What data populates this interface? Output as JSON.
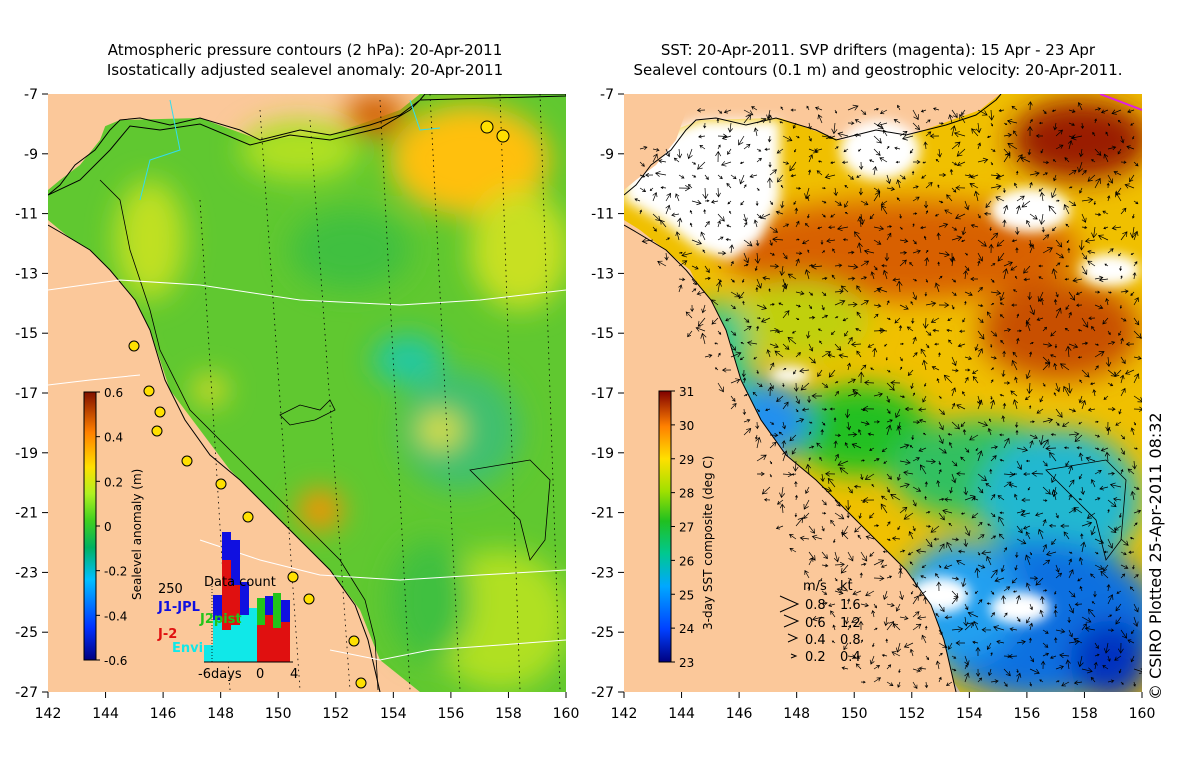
{
  "left_panel": {
    "title_line1": "Atmospheric pressure contours (2 hPa): 20-Apr-2011",
    "title_line2": "Isostatically adjusted sealevel anomaly: 20-Apr-2011",
    "colorbar": {
      "label": "Sealevel anomaly (m)",
      "ticks": [
        "0.6",
        "0.4",
        "0.2",
        "0",
        "-0.2",
        "-0.4",
        "-0.6"
      ],
      "range": [
        -0.6,
        0.6
      ]
    },
    "data_count": {
      "title": "Data count",
      "ytick": "250",
      "xticks": [
        "-6days",
        "0",
        "4"
      ],
      "legend": [
        {
          "label": "J1-JPL",
          "color": "#1010e0"
        },
        {
          "label": "J2pist",
          "color": "#22c41a"
        },
        {
          "label": "J-2",
          "color": "#e01010"
        },
        {
          "label": "Envi",
          "color": "#10e8e8"
        }
      ]
    }
  },
  "right_panel": {
    "title_line1": "SST: 20-Apr-2011. SVP drifters (magenta): 15 Apr - 23 Apr",
    "title_line2": "Sealevel contours (0.1 m) and geostrophic velocity: 20-Apr-2011.",
    "colorbar": {
      "label": "3-day SST composite (deg C)",
      "ticks": [
        "31",
        "30",
        "29",
        "28",
        "27",
        "26",
        "25",
        "24",
        "23"
      ],
      "range": [
        23,
        31
      ]
    },
    "velocity_key": {
      "headers": [
        "m/s",
        "kt"
      ],
      "rows": [
        {
          "ms": "0.8",
          "kt": "1.6"
        },
        {
          "ms": "0.6",
          "kt": "1.2"
        },
        {
          "ms": "0.4",
          "kt": "0.8"
        },
        {
          "ms": "0.2",
          "kt": "0.4"
        }
      ]
    }
  },
  "axes": {
    "lat_ticks": [
      "-7",
      "-9",
      "-11",
      "-13",
      "-15",
      "-17",
      "-19",
      "-21",
      "-23",
      "-25",
      "-27"
    ],
    "lon_ticks": [
      "142",
      "144",
      "146",
      "148",
      "150",
      "152",
      "154",
      "156",
      "158",
      "160"
    ],
    "lon_range": [
      142,
      160
    ],
    "lat_range": [
      -7,
      -27
    ]
  },
  "credit": "© CSIRO Plotted 25-Apr-2011 08:32",
  "colors": {
    "land": "#fbc89a",
    "cloud": "#ffffff",
    "sla_scale": [
      "#000080",
      "#0030ff",
      "#00c0ff",
      "#00c050",
      "#60e020",
      "#c0f020",
      "#ffe000",
      "#ff8000",
      "#c04000",
      "#801000"
    ],
    "sst_scale": [
      "#000080",
      "#0040ff",
      "#00a0ff",
      "#00c890",
      "#20c020",
      "#a0e000",
      "#ffe000",
      "#ff9000",
      "#c04000",
      "#800000"
    ]
  }
}
